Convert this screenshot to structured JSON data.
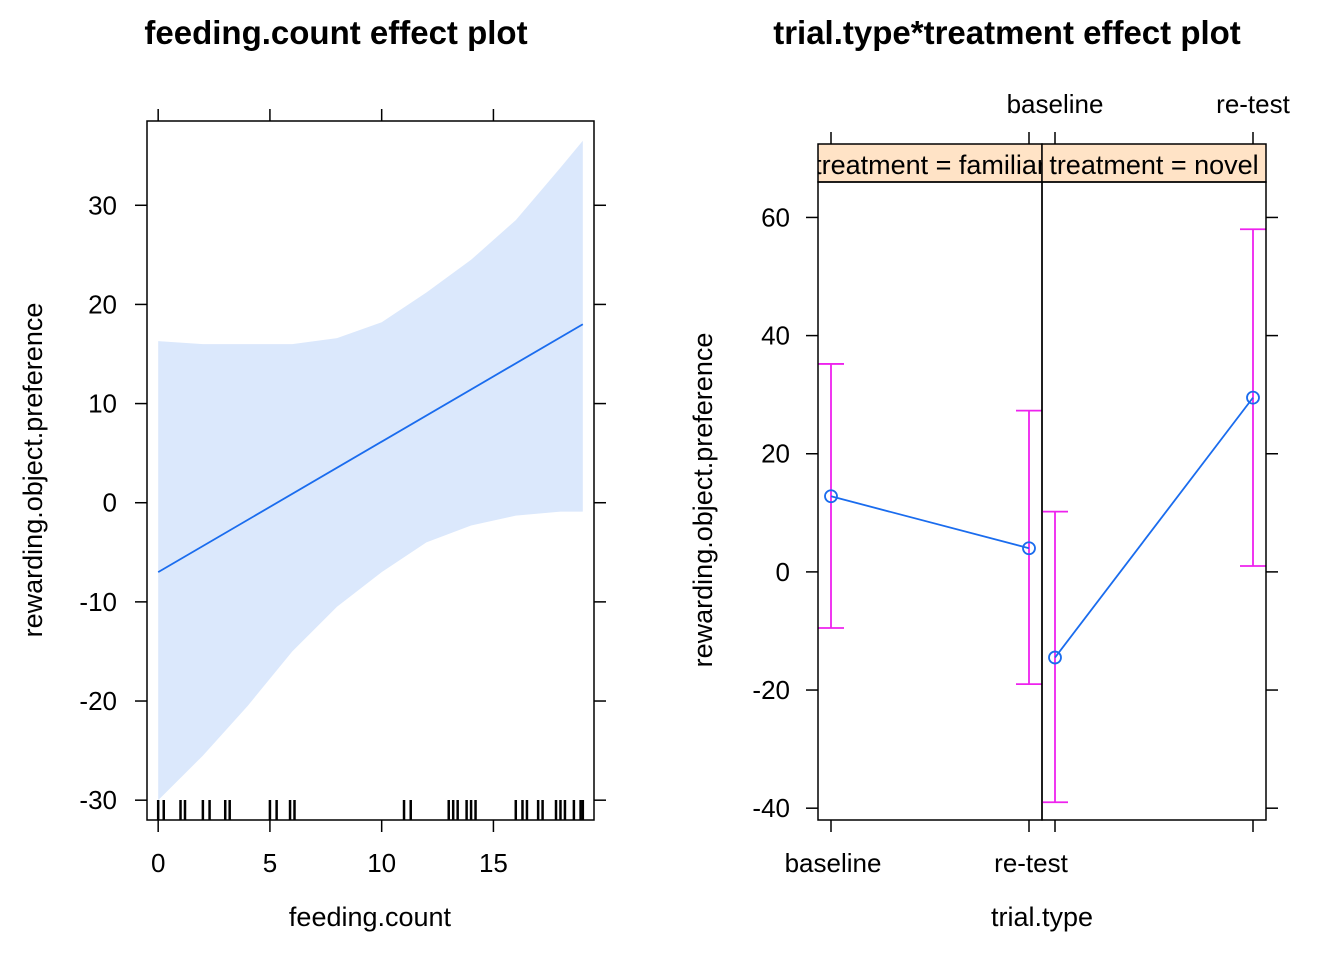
{
  "chart_data": [
    {
      "type": "line",
      "title": "feeding.count effect plot",
      "xlabel": "feeding.count",
      "ylabel": "rewarding.object.preference",
      "xlim": [
        -0.5,
        19.5
      ],
      "ylim": [
        -32,
        38.5
      ],
      "x_ticks": [
        0,
        5,
        10,
        15
      ],
      "y_ticks": [
        -30,
        -20,
        -10,
        0,
        10,
        20,
        30
      ],
      "x_tick_labels": [
        "0",
        "5",
        "10",
        "15"
      ],
      "y_tick_labels": [
        "-30",
        "-20",
        "-10",
        "0",
        "10",
        "20",
        "30"
      ],
      "fit": {
        "x": [
          0,
          19
        ],
        "y": [
          -7.0,
          18.0
        ]
      },
      "band": {
        "x": [
          0,
          2,
          4,
          6,
          8,
          10,
          12,
          14,
          16,
          18,
          19
        ],
        "lower": [
          -30,
          -25.5,
          -20.5,
          -15,
          -10.5,
          -7,
          -4,
          -2.3,
          -1.3,
          -0.9,
          -0.9
        ],
        "upper": [
          16.3,
          16.0,
          16.0,
          16.0,
          16.6,
          18.2,
          21.2,
          24.5,
          28.5,
          33.8,
          36.5
        ]
      },
      "rug": [
        0,
        0.25,
        1,
        1.2,
        2,
        2.3,
        3,
        3.2,
        5,
        5.3,
        5.9,
        6.1,
        11,
        11.3,
        13,
        13.2,
        13.4,
        13.8,
        14,
        14.2,
        16,
        16.3,
        16.5,
        17,
        17.2,
        17.8,
        18,
        18.2,
        18.6,
        18.9,
        19
      ],
      "colors": {
        "line": "#1a6cee",
        "band": "#dbe8fc",
        "rug": "#000000"
      }
    },
    {
      "type": "line",
      "title": "trial.type*treatment effect plot",
      "xlabel": "trial.type",
      "ylabel": "rewarding.object.preference",
      "ylim": [
        -42,
        66
      ],
      "y_ticks": [
        -40,
        -20,
        0,
        20,
        40,
        60
      ],
      "y_tick_labels": [
        "-40",
        "-20",
        "0",
        "20",
        "40",
        "60"
      ],
      "categories": [
        "baseline",
        "re-test"
      ],
      "panels": [
        {
          "strip": "treatment = familiar",
          "estimate": [
            12.8,
            4.0
          ],
          "lower": [
            -9.5,
            -19.0
          ],
          "upper": [
            35.2,
            27.3
          ]
        },
        {
          "strip": "treatment = novel",
          "estimate": [
            -14.5,
            29.5
          ],
          "lower": [
            -39.0,
            1.0
          ],
          "upper": [
            10.2,
            58.0
          ]
        }
      ],
      "colors": {
        "line": "#1a6cee",
        "errorbar": "#ee22ee",
        "strip": "#ffe3c6"
      }
    }
  ]
}
